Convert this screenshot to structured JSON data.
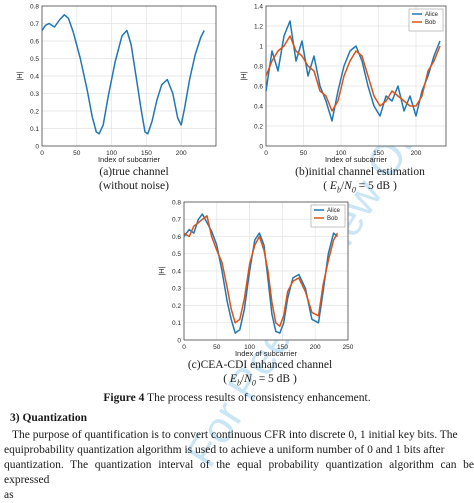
{
  "figure": {
    "panel_a": {
      "caption_line1": "(a)true channel",
      "caption_line2": "(without noise)"
    },
    "panel_b": {
      "caption_line1": "(b)initial channel estimation",
      "caption_line2": "( E_b/N_0 = 5 dB )"
    },
    "panel_c": {
      "caption_line1": "(c)CEA-CDI enhanced channel",
      "caption_line2": "( E_b/N_0 = 5 dB )"
    },
    "caption_label": "Figure 4",
    "caption_text": " The process results of consistency enhancement."
  },
  "section": {
    "heading": "3)  Quantization"
  },
  "paragraph": {
    "line1": "The purpose of quantification is to convert continuous CFR into discrete 0, 1 initial key bits. The",
    "line2": "equiprobability quantization algorithm is used to achieve a uniform number of 0 and 1 bits after",
    "line3": "quantization. The quantization interval of the equal probability quantization algorithm can be expressed",
    "line4": "as"
  },
  "watermark": "For Peer Review Only",
  "colors": {
    "alice": "#1f77b4",
    "bob": "#d95319"
  },
  "chart_data": [
    {
      "type": "line",
      "title": "",
      "xlabel": "Index of subcarrier",
      "ylabel": "|H|",
      "xlim": [
        0,
        250
      ],
      "ylim": [
        0,
        0.8
      ],
      "xticks": [
        0,
        50,
        100,
        150,
        200
      ],
      "yticks": [
        0,
        0.1,
        0.2,
        0.3,
        0.4,
        0.5,
        0.6,
        0.7,
        0.8
      ],
      "grid": true,
      "series": [
        {
          "x": [
            0,
            5,
            10,
            18,
            25,
            32,
            38,
            45,
            55,
            65,
            72,
            78,
            82,
            88,
            95,
            105,
            115,
            122,
            128,
            135,
            142,
            148,
            152,
            158,
            165,
            172,
            180,
            188,
            195,
            200,
            205,
            212,
            220,
            228,
            233
          ],
          "values": [
            0.66,
            0.69,
            0.7,
            0.68,
            0.72,
            0.75,
            0.73,
            0.65,
            0.5,
            0.32,
            0.17,
            0.08,
            0.07,
            0.12,
            0.28,
            0.48,
            0.63,
            0.66,
            0.58,
            0.4,
            0.22,
            0.08,
            0.07,
            0.14,
            0.26,
            0.35,
            0.38,
            0.3,
            0.16,
            0.12,
            0.22,
            0.38,
            0.52,
            0.62,
            0.66
          ]
        }
      ]
    },
    {
      "type": "line",
      "title": "",
      "xlabel": "Index of subcarrier",
      "ylabel": "|H|",
      "xlim": [
        0,
        240
      ],
      "ylim": [
        0,
        1.4
      ],
      "xticks": [
        0,
        50,
        100,
        150,
        200
      ],
      "yticks": [
        0,
        0.2,
        0.4,
        0.6,
        0.8,
        1,
        1.2,
        1.4
      ],
      "grid": true,
      "legend": "top-right",
      "series": [
        {
          "name": "Alice",
          "x": [
            0,
            8,
            16,
            24,
            32,
            40,
            48,
            56,
            64,
            72,
            80,
            88,
            96,
            104,
            112,
            120,
            128,
            136,
            144,
            152,
            160,
            168,
            176,
            184,
            192,
            200,
            208,
            216,
            224,
            232
          ],
          "values": [
            0.55,
            0.95,
            0.75,
            1.1,
            1.25,
            0.85,
            1.05,
            0.7,
            0.9,
            0.6,
            0.45,
            0.25,
            0.55,
            0.8,
            0.95,
            1.0,
            0.85,
            0.6,
            0.4,
            0.3,
            0.5,
            0.45,
            0.6,
            0.35,
            0.5,
            0.3,
            0.55,
            0.7,
            0.9,
            1.05
          ]
        },
        {
          "name": "Bob",
          "x": [
            0,
            8,
            16,
            24,
            32,
            40,
            48,
            56,
            64,
            72,
            80,
            88,
            96,
            104,
            112,
            120,
            128,
            136,
            144,
            152,
            160,
            168,
            176,
            184,
            192,
            200,
            208,
            216,
            224,
            232
          ],
          "values": [
            0.7,
            0.85,
            0.95,
            1.0,
            1.1,
            0.95,
            0.9,
            0.8,
            0.75,
            0.55,
            0.5,
            0.35,
            0.45,
            0.7,
            0.85,
            0.95,
            0.9,
            0.7,
            0.5,
            0.4,
            0.45,
            0.55,
            0.5,
            0.45,
            0.4,
            0.4,
            0.5,
            0.75,
            0.85,
            1.0
          ]
        }
      ]
    },
    {
      "type": "line",
      "title": "",
      "xlabel": "Index of subcarrier",
      "ylabel": "|H|",
      "xlim": [
        0,
        250
      ],
      "ylim": [
        0,
        0.8
      ],
      "xticks": [
        0,
        50,
        100,
        150,
        200,
        250
      ],
      "yticks": [
        0,
        0.1,
        0.2,
        0.3,
        0.4,
        0.5,
        0.6,
        0.7,
        0.8
      ],
      "grid": true,
      "legend": "top-right",
      "series": [
        {
          "name": "Alice",
          "x": [
            0,
            8,
            15,
            22,
            28,
            35,
            42,
            50,
            58,
            66,
            72,
            78,
            85,
            92,
            100,
            108,
            115,
            122,
            128,
            134,
            140,
            146,
            152,
            158,
            166,
            175,
            185,
            195,
            205,
            212,
            220,
            228,
            234
          ],
          "values": [
            0.6,
            0.64,
            0.62,
            0.7,
            0.73,
            0.68,
            0.63,
            0.55,
            0.4,
            0.22,
            0.12,
            0.04,
            0.06,
            0.18,
            0.4,
            0.58,
            0.62,
            0.55,
            0.35,
            0.15,
            0.05,
            0.04,
            0.1,
            0.24,
            0.36,
            0.38,
            0.3,
            0.12,
            0.1,
            0.28,
            0.5,
            0.62,
            0.6
          ]
        },
        {
          "name": "Bob",
          "x": [
            0,
            8,
            15,
            22,
            28,
            35,
            42,
            50,
            58,
            66,
            72,
            78,
            85,
            92,
            100,
            108,
            115,
            122,
            128,
            134,
            140,
            146,
            152,
            158,
            166,
            175,
            185,
            195,
            205,
            212,
            220,
            228,
            234
          ],
          "values": [
            0.62,
            0.6,
            0.66,
            0.68,
            0.7,
            0.72,
            0.6,
            0.52,
            0.45,
            0.3,
            0.18,
            0.1,
            0.12,
            0.24,
            0.44,
            0.55,
            0.6,
            0.52,
            0.4,
            0.22,
            0.1,
            0.08,
            0.14,
            0.28,
            0.34,
            0.36,
            0.28,
            0.16,
            0.14,
            0.32,
            0.46,
            0.58,
            0.62
          ]
        }
      ]
    }
  ]
}
